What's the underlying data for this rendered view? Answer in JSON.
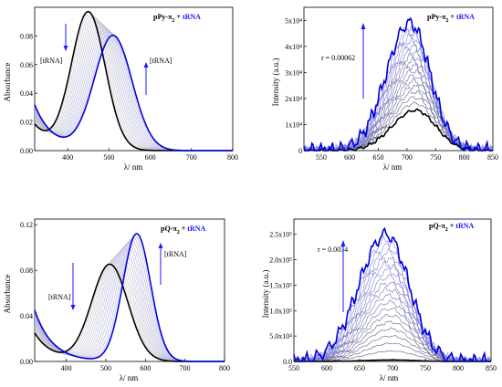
{
  "chart_data": [
    {
      "id": "abs_pPy",
      "type": "line",
      "title": "pPy-π₂ + tRNA",
      "title_prefix": "pPy-π",
      "title_sub": "2",
      "title_plus": " + ",
      "title_suffix": "tRNA",
      "xlabel": "λ/ nm",
      "ylabel": "Absorbance",
      "xlim": [
        320,
        800
      ],
      "ylim": [
        0,
        0.1
      ],
      "xticks": [
        400,
        500,
        600,
        700,
        800
      ],
      "yticks": [
        0.0,
        0.02,
        0.04,
        0.06,
        0.08
      ],
      "ytick_labels": [
        "0.00",
        "0.02",
        "0.04",
        "0.06",
        "0.08"
      ],
      "annotations": {
        "down": "[tRNA]",
        "up": "[tRNA]"
      },
      "series": [
        {
          "role": "initial",
          "color": "#000000",
          "peak_x": 450,
          "peak_y": 0.096,
          "width": 58,
          "tail_y": 0.018
        },
        {
          "role": "final",
          "color": "#0000dd",
          "peak_x": 510,
          "peak_y": 0.08,
          "width": 65,
          "tail_y": 0.032
        }
      ],
      "intermediate_count": 14
    },
    {
      "id": "fl_pPy",
      "type": "line",
      "title": "pPy-π₂ + tRNA",
      "title_prefix": "pPy-π",
      "title_sub": "2",
      "title_plus": " + ",
      "title_suffix": "tRNA",
      "xlabel": "λ/ nm",
      "ylabel": "Intensity (a.u.)",
      "xlim": [
        520,
        850
      ],
      "ylim": [
        0,
        55000
      ],
      "xticks": [
        550,
        600,
        650,
        700,
        750,
        800,
        850
      ],
      "yticks": [
        0,
        10000,
        20000,
        30000,
        40000,
        50000
      ],
      "ytick_labels": [
        "0",
        "1x10⁴",
        "2x10⁴",
        "3x10⁴",
        "4x10⁴",
        "5x10⁴"
      ],
      "annotations": {
        "r": "r = 0.00062"
      },
      "series": [
        {
          "role": "initial",
          "color": "#000000",
          "peak_x": 715,
          "peak_y": 15500
        },
        {
          "role": "final",
          "color": "#0000dd",
          "peak_x": 705,
          "peak_y": 49000
        }
      ],
      "intermediate_count": 16
    },
    {
      "id": "abs_pQ",
      "type": "line",
      "title": "pQ-π₂ + tRNA",
      "title_prefix": "pQ-π",
      "title_sub": "2",
      "title_plus": " + ",
      "title_suffix": "tRNA",
      "xlabel": "λ/ nm",
      "ylabel": "Absorbance",
      "xlim": [
        320,
        800
      ],
      "ylim": [
        0,
        0.125
      ],
      "xticks": [
        400,
        500,
        600,
        700,
        800
      ],
      "yticks": [
        0.0,
        0.04,
        0.08,
        0.12
      ],
      "ytick_labels": [
        "0.00",
        "0.04",
        "0.08",
        "0.12"
      ],
      "annotations": {
        "down": "[tRNA]",
        "up": "[tRNA]"
      },
      "series": [
        {
          "role": "initial",
          "color": "#000000",
          "peak_x": 510,
          "peak_y": 0.085,
          "width": 65,
          "tail_y": 0.025
        },
        {
          "role": "final",
          "color": "#0000dd",
          "peak_x": 578,
          "peak_y": 0.112,
          "width": 50,
          "tail_y": 0.045
        }
      ],
      "intermediate_count": 14
    },
    {
      "id": "fl_pQ",
      "type": "line",
      "title": "pQ-π₂ + tRNA",
      "title_prefix": "pQ-π",
      "title_sub": "2",
      "title_plus": " + ",
      "title_suffix": "tRNA",
      "xlabel": "λ/ nm",
      "ylabel": "Intensity (a.u.)",
      "xlim": [
        550,
        850
      ],
      "ylim": [
        0,
        280000
      ],
      "xticks": [
        550,
        600,
        650,
        700,
        750,
        800,
        850
      ],
      "yticks": [
        0,
        50000,
        100000,
        150000,
        200000,
        250000
      ],
      "ytick_labels": [
        "0.0",
        "5.0x10⁴",
        "1.0x10⁵",
        "1.5x10⁵",
        "2.0x10⁵",
        "2.5x10⁵"
      ],
      "annotations": {
        "r": "r = 0.0034"
      },
      "series": [
        {
          "role": "initial",
          "color": "#000000",
          "peak_x": 700,
          "peak_y": 3000
        },
        {
          "role": "final",
          "color": "#0000dd",
          "peak_x": 690,
          "peak_y": 250000
        }
      ],
      "intermediate_count": 18
    }
  ]
}
